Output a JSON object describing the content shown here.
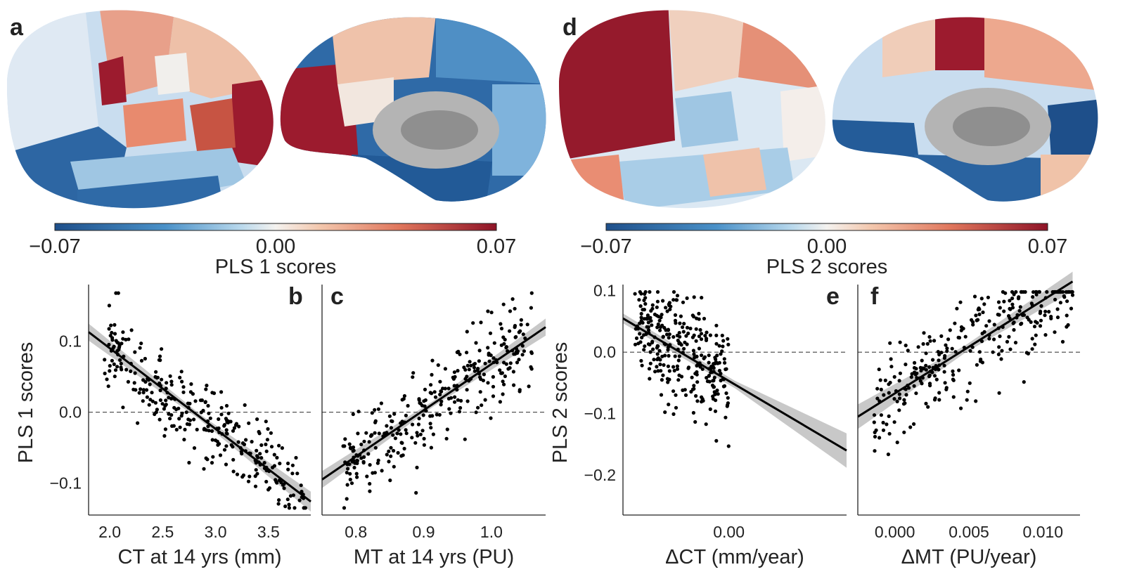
{
  "colors": {
    "neg": "#1e4f8a",
    "mid": "#f4f2ef",
    "pos": "#8e1327",
    "cortex_gray": "#a9a9a9",
    "point": "#000000",
    "ci_band": "#c8c8c8"
  },
  "panels": {
    "a": "a",
    "b": "b",
    "c": "c",
    "d": "d",
    "e": "e",
    "f": "f"
  },
  "colorbars": [
    {
      "id": "pls1",
      "label": "PLS 1 scores",
      "ticks": [
        "−0.07",
        "0.00",
        "0.07"
      ],
      "range": [
        -0.07,
        0.07
      ]
    },
    {
      "id": "pls2",
      "label": "PLS 2 scores",
      "ticks": [
        "−0.07",
        "0.00",
        "0.07"
      ],
      "range": [
        -0.07,
        0.07
      ]
    }
  ],
  "chart_data": [
    {
      "id": "b",
      "type": "scatter",
      "xlabel": "CT at 14 yrs (mm)",
      "ylabel": "PLS 1 scores",
      "xlim": [
        1.8,
        3.9
      ],
      "ylim": [
        -0.145,
        0.18
      ],
      "xticks": [
        2.0,
        2.5,
        3.0,
        3.5
      ],
      "xtick_labels": [
        "2.0",
        "2.5",
        "3.0",
        "3.5"
      ],
      "yticks": [
        -0.1,
        0.0,
        0.1
      ],
      "ytick_labels": [
        "−0.1",
        "0.0",
        "0.1"
      ],
      "zero_line": 0.0,
      "fit": {
        "x": [
          1.8,
          3.9
        ],
        "y": [
          0.113,
          -0.126
        ]
      },
      "ci_halfwidth": [
        0.012,
        0.004,
        0.014
      ],
      "n_points": 300,
      "seed": 11,
      "points_x_range": [
        1.95,
        3.85
      ],
      "noise": 0.03
    },
    {
      "id": "c",
      "type": "scatter",
      "xlabel": "MT at 14 yrs (PU)",
      "ylabel": "",
      "xlim": [
        0.75,
        1.08
      ],
      "ylim": [
        -0.145,
        0.18
      ],
      "xticks": [
        0.8,
        0.9,
        1.0
      ],
      "xtick_labels": [
        "0.8",
        "0.9",
        "1.0"
      ],
      "yticks": [],
      "ytick_labels": [],
      "zero_line": 0.0,
      "fit": {
        "x": [
          0.75,
          1.08
        ],
        "y": [
          -0.095,
          0.12
        ]
      },
      "ci_halfwidth": [
        0.012,
        0.004,
        0.012
      ],
      "n_points": 300,
      "seed": 23,
      "points_x_range": [
        0.78,
        1.06
      ],
      "noise": 0.03
    },
    {
      "id": "e",
      "type": "scatter",
      "xlabel": "ΔCT (mm/year)",
      "ylabel": "PLS 2 scores",
      "xlim": [
        -0.018,
        0.02
      ],
      "ylim": [
        -0.265,
        0.11
      ],
      "xticks": [
        0.0
      ],
      "xtick_labels": [
        "0.00"
      ],
      "yticks": [
        -0.2,
        -0.1,
        0.0,
        0.1
      ],
      "ytick_labels": [
        "−0.2",
        "−0.1",
        "0.0",
        "0.1"
      ],
      "zero_line": 0.0,
      "fit": {
        "x": [
          -0.018,
          0.02
        ],
        "y": [
          0.055,
          -0.16
        ]
      },
      "ci_halfwidth": [
        0.008,
        0.006,
        0.028
      ],
      "n_points": 300,
      "seed": 37,
      "points_x_range": [
        -0.016,
        0.0
      ],
      "noise": 0.045
    },
    {
      "id": "f",
      "type": "scatter",
      "xlabel": "ΔMT (PU/year)",
      "ylabel": "",
      "xlim": [
        -0.0025,
        0.0125
      ],
      "ylim": [
        -0.265,
        0.11
      ],
      "xticks": [
        0.0,
        0.005,
        0.01
      ],
      "xtick_labels": [
        "0.000",
        "0.005",
        "0.010"
      ],
      "yticks": [],
      "ytick_labels": [],
      "zero_line": 0.0,
      "fit": {
        "x": [
          -0.0025,
          0.012
        ],
        "y": [
          -0.105,
          0.115
        ]
      },
      "ci_halfwidth": [
        0.02,
        0.006,
        0.016
      ],
      "n_points": 300,
      "seed": 53,
      "points_x_range": [
        -0.0015,
        0.012
      ],
      "noise": 0.04
    }
  ]
}
